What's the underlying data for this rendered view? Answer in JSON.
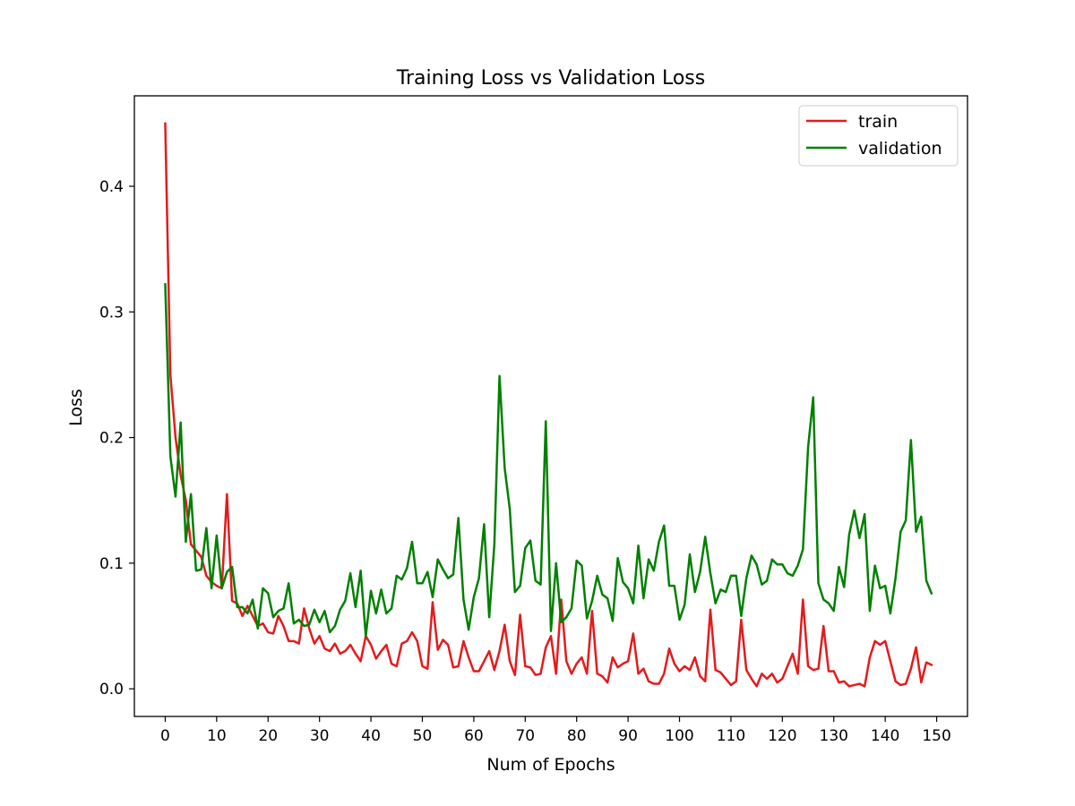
{
  "chart_data": {
    "type": "line",
    "title": "Training Loss vs Validation Loss",
    "xlabel": "Num of Epochs",
    "ylabel": "Loss",
    "xlim": [
      -6,
      156
    ],
    "ylim": [
      -0.022,
      0.472
    ],
    "xticks": [
      0,
      10,
      20,
      30,
      40,
      50,
      60,
      70,
      80,
      90,
      100,
      110,
      120,
      130,
      140,
      150
    ],
    "yticks": [
      0.0,
      0.1,
      0.2,
      0.3,
      0.4
    ],
    "ytick_labels": [
      "0.0",
      "0.1",
      "0.2",
      "0.3",
      "0.4"
    ],
    "grid": false,
    "legend": {
      "position": "top-right",
      "entries": [
        "train",
        "validation"
      ]
    },
    "series": [
      {
        "name": "train",
        "color": "#e41a1c",
        "values": [
          0.45,
          0.25,
          0.2,
          0.17,
          0.15,
          0.115,
          0.11,
          0.105,
          0.09,
          0.085,
          0.082,
          0.08,
          0.155,
          0.07,
          0.068,
          0.058,
          0.066,
          0.058,
          0.05,
          0.052,
          0.045,
          0.044,
          0.058,
          0.05,
          0.038,
          0.038,
          0.036,
          0.064,
          0.048,
          0.036,
          0.042,
          0.032,
          0.03,
          0.036,
          0.028,
          0.03,
          0.035,
          0.028,
          0.022,
          0.042,
          0.035,
          0.024,
          0.03,
          0.035,
          0.02,
          0.018,
          0.036,
          0.038,
          0.045,
          0.038,
          0.018,
          0.016,
          0.069,
          0.031,
          0.039,
          0.035,
          0.017,
          0.018,
          0.038,
          0.025,
          0.014,
          0.014,
          0.022,
          0.03,
          0.015,
          0.03,
          0.051,
          0.022,
          0.011,
          0.059,
          0.018,
          0.017,
          0.011,
          0.012,
          0.033,
          0.042,
          0.012,
          0.071,
          0.022,
          0.012,
          0.02,
          0.025,
          0.012,
          0.062,
          0.012,
          0.01,
          0.005,
          0.025,
          0.017,
          0.02,
          0.022,
          0.044,
          0.012,
          0.016,
          0.006,
          0.004,
          0.004,
          0.012,
          0.032,
          0.02,
          0.014,
          0.018,
          0.015,
          0.025,
          0.01,
          0.006,
          0.063,
          0.015,
          0.013,
          0.008,
          0.003,
          0.006,
          0.055,
          0.015,
          0.008,
          0.002,
          0.012,
          0.008,
          0.012,
          0.005,
          0.008,
          0.018,
          0.028,
          0.012,
          0.071,
          0.018,
          0.015,
          0.016,
          0.05,
          0.014,
          0.014,
          0.005,
          0.006,
          0.002,
          0.003,
          0.004,
          0.002,
          0.025,
          0.038,
          0.035,
          0.038,
          0.022,
          0.006,
          0.003,
          0.004,
          0.016,
          0.033,
          0.005,
          0.021,
          0.019
        ]
      },
      {
        "name": "validation",
        "color": "#008000",
        "values": [
          0.322,
          0.185,
          0.153,
          0.212,
          0.117,
          0.155,
          0.094,
          0.095,
          0.128,
          0.08,
          0.122,
          0.08,
          0.093,
          0.097,
          0.065,
          0.065,
          0.06,
          0.071,
          0.048,
          0.08,
          0.076,
          0.057,
          0.062,
          0.064,
          0.084,
          0.052,
          0.055,
          0.05,
          0.051,
          0.063,
          0.053,
          0.062,
          0.045,
          0.05,
          0.063,
          0.07,
          0.092,
          0.065,
          0.094,
          0.042,
          0.078,
          0.06,
          0.079,
          0.06,
          0.064,
          0.09,
          0.087,
          0.096,
          0.117,
          0.084,
          0.084,
          0.093,
          0.073,
          0.103,
          0.095,
          0.088,
          0.091,
          0.136,
          0.071,
          0.047,
          0.073,
          0.088,
          0.131,
          0.057,
          0.115,
          0.249,
          0.176,
          0.143,
          0.077,
          0.082,
          0.112,
          0.118,
          0.086,
          0.083,
          0.213,
          0.046,
          0.1,
          0.053,
          0.057,
          0.064,
          0.102,
          0.098,
          0.056,
          0.07,
          0.09,
          0.075,
          0.072,
          0.054,
          0.104,
          0.085,
          0.08,
          0.068,
          0.114,
          0.072,
          0.103,
          0.094,
          0.117,
          0.13,
          0.082,
          0.082,
          0.055,
          0.067,
          0.107,
          0.077,
          0.093,
          0.121,
          0.092,
          0.068,
          0.079,
          0.077,
          0.09,
          0.09,
          0.058,
          0.088,
          0.106,
          0.099,
          0.083,
          0.086,
          0.103,
          0.099,
          0.099,
          0.092,
          0.09,
          0.098,
          0.111,
          0.192,
          0.232,
          0.084,
          0.071,
          0.068,
          0.062,
          0.097,
          0.081,
          0.123,
          0.142,
          0.12,
          0.139,
          0.062,
          0.098,
          0.08,
          0.082,
          0.06,
          0.088,
          0.125,
          0.134,
          0.198,
          0.125,
          0.137,
          0.086,
          0.076
        ]
      }
    ]
  }
}
